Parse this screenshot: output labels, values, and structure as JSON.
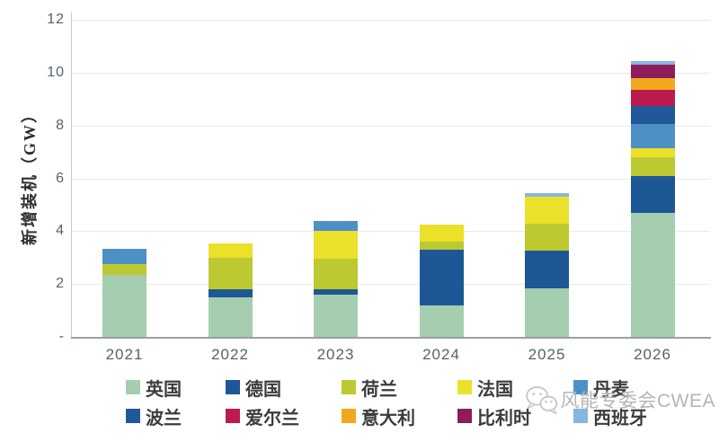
{
  "chart_data": {
    "type": "bar",
    "stacked": true,
    "title": "",
    "xlabel": "",
    "ylabel": "新增装机（GW）",
    "ylim": [
      0,
      12
    ],
    "grid": true,
    "legend_position": "bottom",
    "ytick_labels": [
      "12",
      "10",
      "8",
      "6",
      "4",
      "2",
      "-"
    ],
    "ytick_values": [
      12,
      10,
      8,
      6,
      4,
      2,
      0
    ],
    "categories": [
      "2021",
      "2022",
      "2023",
      "2024",
      "2025",
      "2026"
    ],
    "series": [
      {
        "name": "英国",
        "color": "#a5cdb0",
        "values": [
          2.35,
          1.5,
          1.6,
          1.2,
          1.85,
          4.7
        ]
      },
      {
        "name": "德国",
        "color": "#1d5796",
        "values": [
          0,
          0.3,
          0.2,
          2.1,
          1.4,
          1.4
        ]
      },
      {
        "name": "荷兰",
        "color": "#bdc930",
        "values": [
          0.4,
          1.2,
          1.15,
          0.3,
          1.05,
          0.7
        ]
      },
      {
        "name": "法国",
        "color": "#ebe12a",
        "values": [
          0,
          0.55,
          1.05,
          0.65,
          1.0,
          0.35
        ]
      },
      {
        "name": "丹麦",
        "color": "#4d90c6",
        "values": [
          0.6,
          0,
          0.4,
          0,
          0,
          0.9
        ]
      },
      {
        "name": "波兰",
        "color": "#21589a",
        "values": [
          0,
          0,
          0,
          0,
          0,
          0.7
        ]
      },
      {
        "name": "爱尔兰",
        "color": "#bb1b4d",
        "values": [
          0,
          0,
          0,
          0,
          0,
          0.6
        ]
      },
      {
        "name": "意大利",
        "color": "#f2a81d",
        "values": [
          0,
          0,
          0,
          0,
          0,
          0.45
        ]
      },
      {
        "name": "比利时",
        "color": "#8e1c5c",
        "values": [
          0,
          0,
          0,
          0,
          0,
          0.5
        ]
      },
      {
        "name": "西班牙",
        "color": "#85b7dc",
        "values": [
          0,
          0,
          0,
          0,
          0.15,
          0.15
        ]
      }
    ]
  },
  "watermark": {
    "icon": "wechat-icon",
    "text": "风能专委会CWEA"
  }
}
